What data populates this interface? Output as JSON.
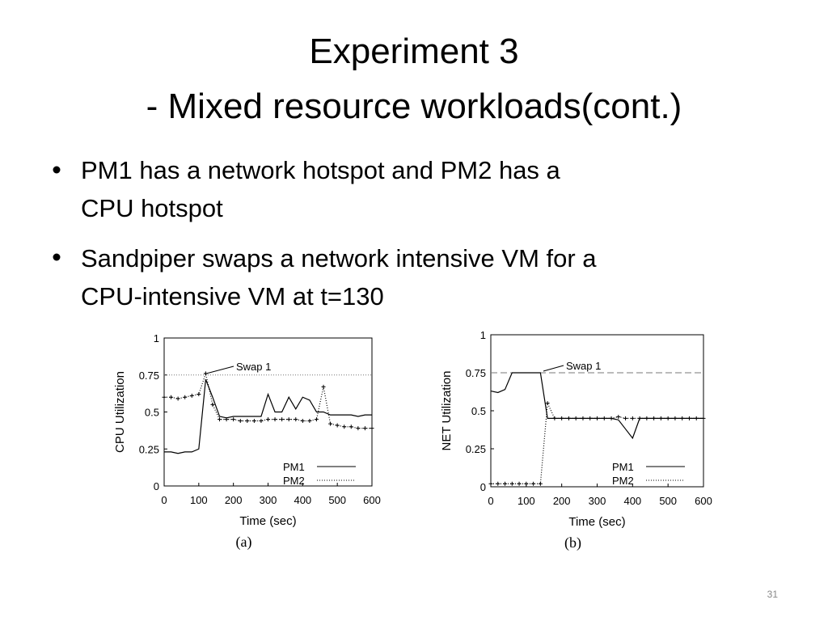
{
  "slide": {
    "title": [
      "Experiment 3",
      "- Mixed resource workloads(cont.)"
    ],
    "bullets": [
      [
        "PM1 has a network hotspot and PM2 has a",
        "CPU hotspot"
      ],
      [
        "Sandpiper swaps a network intensive VM for a",
        "CPU-intensive VM at t=130"
      ]
    ],
    "page_number": "31"
  },
  "chart_data": [
    {
      "type": "line",
      "caption": "(a)",
      "x_label": "Time (sec)",
      "y_label": "CPU Utilization",
      "annotation": "Swap 1",
      "x": [
        0,
        20,
        40,
        60,
        80,
        100,
        120,
        140,
        160,
        180,
        200,
        220,
        240,
        260,
        280,
        300,
        320,
        340,
        360,
        380,
        400,
        420,
        440,
        460,
        480,
        500,
        520,
        540,
        560,
        580,
        600
      ],
      "series": [
        {
          "name": "PM1",
          "color": "#000000",
          "style": "solid",
          "values": [
            0.23,
            0.23,
            0.22,
            0.23,
            0.23,
            0.25,
            0.72,
            0.6,
            0.47,
            0.46,
            0.47,
            0.47,
            0.47,
            0.47,
            0.47,
            0.62,
            0.5,
            0.5,
            0.6,
            0.52,
            0.6,
            0.58,
            0.5,
            0.5,
            0.48,
            0.48,
            0.48,
            0.48,
            0.47,
            0.48,
            0.48
          ]
        },
        {
          "name": "PM2",
          "color": "#000000",
          "style": "dotted",
          "values": [
            0.6,
            0.6,
            0.59,
            0.6,
            0.61,
            0.62,
            0.76,
            0.55,
            0.45,
            0.45,
            0.45,
            0.44,
            0.44,
            0.44,
            0.44,
            0.45,
            0.45,
            0.45,
            0.45,
            0.45,
            0.44,
            0.44,
            0.45,
            0.67,
            0.42,
            0.41,
            0.4,
            0.4,
            0.39,
            0.39,
            0.39
          ]
        }
      ],
      "threshold": 0.75,
      "threshold_style": "dotted",
      "xlim": [
        0,
        600
      ],
      "xticks": [
        0,
        100,
        200,
        300,
        400,
        500,
        600
      ],
      "ylim": [
        0,
        1
      ],
      "yticks": [
        0,
        0.25,
        0.5,
        0.75,
        1
      ],
      "legend": "lower right"
    },
    {
      "type": "line",
      "caption": "(b)",
      "x_label": "Time (sec)",
      "y_label": "NET Utilization",
      "annotation": "Swap 1",
      "x": [
        0,
        20,
        40,
        60,
        80,
        100,
        120,
        140,
        160,
        180,
        200,
        220,
        240,
        260,
        280,
        300,
        320,
        340,
        360,
        380,
        400,
        420,
        440,
        460,
        480,
        500,
        520,
        540,
        560,
        580,
        600
      ],
      "series": [
        {
          "name": "PM1",
          "color": "#000000",
          "style": "solid",
          "values": [
            0.63,
            0.62,
            0.64,
            0.75,
            0.75,
            0.75,
            0.75,
            0.75,
            0.45,
            0.45,
            0.45,
            0.45,
            0.45,
            0.45,
            0.45,
            0.45,
            0.45,
            0.45,
            0.44,
            0.38,
            0.32,
            0.45,
            0.45,
            0.45,
            0.45,
            0.45,
            0.45,
            0.45,
            0.45,
            0.45,
            0.45
          ]
        },
        {
          "name": "PM2",
          "color": "#000000",
          "style": "dotted",
          "values": [
            0.02,
            0.02,
            0.02,
            0.02,
            0.02,
            0.02,
            0.02,
            0.02,
            0.55,
            0.45,
            0.45,
            0.45,
            0.45,
            0.45,
            0.45,
            0.45,
            0.45,
            0.45,
            0.46,
            0.45,
            0.45,
            0.45,
            0.45,
            0.45,
            0.45,
            0.45,
            0.45,
            0.45,
            0.45,
            0.45,
            0.45
          ]
        }
      ],
      "threshold": 0.75,
      "threshold_style": "dashed",
      "xlim": [
        0,
        600
      ],
      "xticks": [
        0,
        100,
        200,
        300,
        400,
        500,
        600
      ],
      "ylim": [
        0,
        1
      ],
      "yticks": [
        0,
        0.25,
        0.5,
        0.75,
        1
      ],
      "legend": "lower right"
    }
  ]
}
